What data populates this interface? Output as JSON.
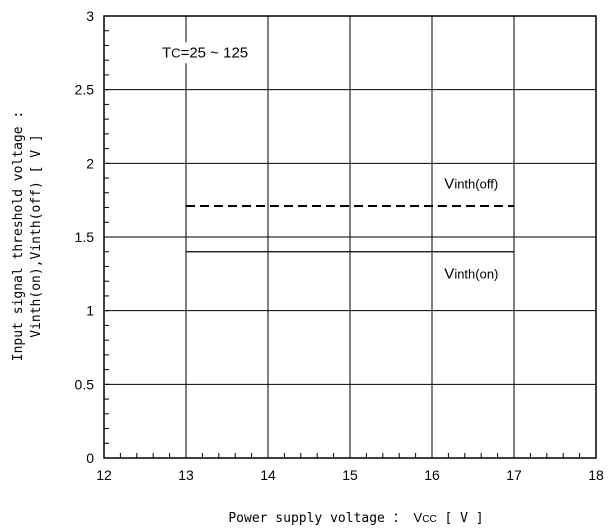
{
  "chart_data": {
    "type": "line",
    "xlabel_prefix": "Power supply voltage ：",
    "xlabel_symbol": "V",
    "xlabel_sub": "CC",
    "xlabel_unit": "[ V ]",
    "ylabel_line1": "Input signal threshold voltage :",
    "ylabel_line2": "Vinth(on),Vinth(off) [ V ]",
    "xlim": [
      12,
      18
    ],
    "ylim": [
      0,
      3
    ],
    "x_ticks": [
      12,
      13,
      14,
      15,
      16,
      17,
      18
    ],
    "y_ticks": [
      0,
      0.5,
      1,
      1.5,
      2,
      2.5,
      3
    ],
    "x_tick_labels": [
      "12",
      "13",
      "14",
      "15",
      "16",
      "17",
      "18"
    ],
    "y_tick_labels": [
      "0",
      "0.5",
      "1",
      "1.5",
      "2",
      "2.5",
      "3"
    ],
    "grid": true,
    "condition": {
      "symbol": "T",
      "sub": "C",
      "rest": "=25 ~ 125",
      "x": 13.0,
      "y": 2.72
    },
    "series": [
      {
        "name_main": "V",
        "name_sub": "inth(off)",
        "style": "dashed",
        "x": [
          13,
          17
        ],
        "y": [
          1.71,
          1.71
        ],
        "label_x": 16.15,
        "label_y": 1.83
      },
      {
        "name_main": "V",
        "name_sub": "inth(on)",
        "style": "solid",
        "x": [
          13,
          17
        ],
        "y": [
          1.4,
          1.4
        ],
        "label_x": 16.15,
        "label_y": 1.22
      }
    ]
  }
}
